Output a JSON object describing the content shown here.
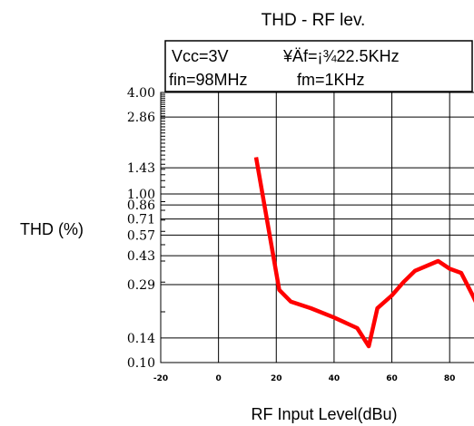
{
  "chart_data": {
    "type": "line",
    "title": "THD - RF lev.",
    "xlabel": "RF Input Level(dBu)",
    "ylabel": "THD (%)",
    "y_scale": "log",
    "ylim": [
      0.1,
      4.0
    ],
    "xlim": [
      0,
      110
    ],
    "y_tick_labels": [
      "4.00",
      "2.86",
      "1.43",
      "1.00",
      "0.86",
      "0.71",
      "0.57",
      "0.43",
      "0.29",
      "0.14",
      "0.10"
    ],
    "y_tick_values": [
      4.0,
      2.86,
      1.43,
      1.0,
      0.86,
      0.71,
      0.57,
      0.43,
      0.29,
      0.14,
      0.1
    ],
    "x_tick_labels": [
      "-20",
      "0",
      "20",
      "40",
      "60",
      "80"
    ],
    "x_tick_values": [
      0,
      20,
      40,
      60,
      80,
      100
    ],
    "grid": true,
    "annotation": {
      "line1_left": "Vcc=3V",
      "line1_right": "¥Äf=¡¾22.5KHz",
      "line2_left": "fin=98MHz",
      "line2_right": "fm=1KHz"
    },
    "series": [
      {
        "color": "#ff0000",
        "x": [
          33,
          41,
          45,
          52,
          60,
          68,
          72,
          75,
          80,
          84,
          88,
          96,
          100,
          104,
          108,
          112
        ],
        "y": [
          1.65,
          0.27,
          0.23,
          0.21,
          0.185,
          0.16,
          0.125,
          0.21,
          0.25,
          0.3,
          0.35,
          0.4,
          0.36,
          0.34,
          0.25,
          0.18
        ]
      }
    ]
  }
}
